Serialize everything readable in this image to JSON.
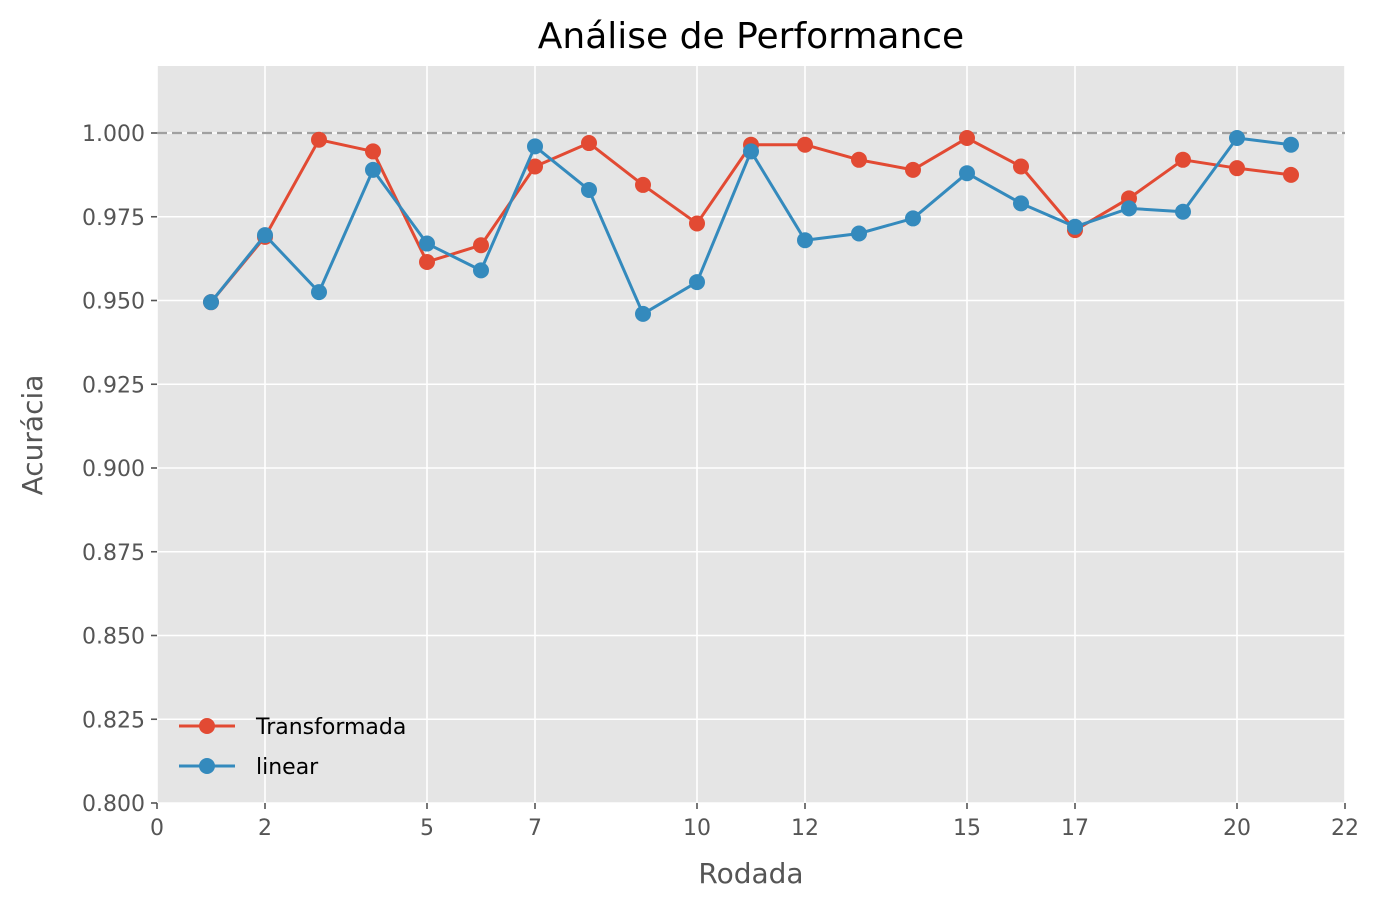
{
  "chart_data": {
    "type": "line",
    "title": "Análise de Performance",
    "xlabel": "Rodada",
    "ylabel": "Acurácia",
    "xlim": [
      0,
      22
    ],
    "ylim": [
      0.8,
      1.02
    ],
    "xticks": [
      0,
      2,
      5,
      7,
      10,
      12,
      15,
      17,
      20,
      22
    ],
    "xtick_labels": [
      "0",
      "2",
      "5",
      "7",
      "10",
      "12",
      "15",
      "17",
      "20",
      "22"
    ],
    "yticks": [
      0.8,
      0.825,
      0.85,
      0.875,
      0.9,
      0.925,
      0.95,
      0.975,
      1.0
    ],
    "ytick_labels": [
      "0.800",
      "0.825",
      "0.850",
      "0.875",
      "0.900",
      "0.925",
      "0.950",
      "0.975",
      "1.000"
    ],
    "reference_line": {
      "y": 1.0,
      "style": "dashed",
      "color": "#a0a0a0"
    },
    "grid": true,
    "legend_position": "lower-left",
    "x": [
      1,
      2,
      3,
      4,
      5,
      6,
      7,
      8,
      9,
      10,
      11,
      12,
      13,
      14,
      15,
      16,
      17,
      18,
      19,
      20,
      21
    ],
    "series": [
      {
        "name": "Transformada",
        "color": "#e24a33",
        "values": [
          0.9495,
          0.969,
          0.998,
          0.9945,
          0.9615,
          0.9665,
          0.99,
          0.997,
          0.9845,
          0.973,
          0.9965,
          0.9965,
          0.992,
          0.989,
          0.9985,
          0.99,
          0.971,
          0.9805,
          0.992,
          0.9895,
          0.9875
        ]
      },
      {
        "name": "linear",
        "color": "#348abd",
        "values": [
          0.9495,
          0.9695,
          0.9525,
          0.989,
          0.967,
          0.959,
          0.996,
          0.983,
          0.946,
          0.9555,
          0.9945,
          0.968,
          0.97,
          0.9745,
          0.988,
          0.979,
          0.972,
          0.9775,
          0.9765,
          0.9985,
          0.9965
        ]
      }
    ]
  }
}
